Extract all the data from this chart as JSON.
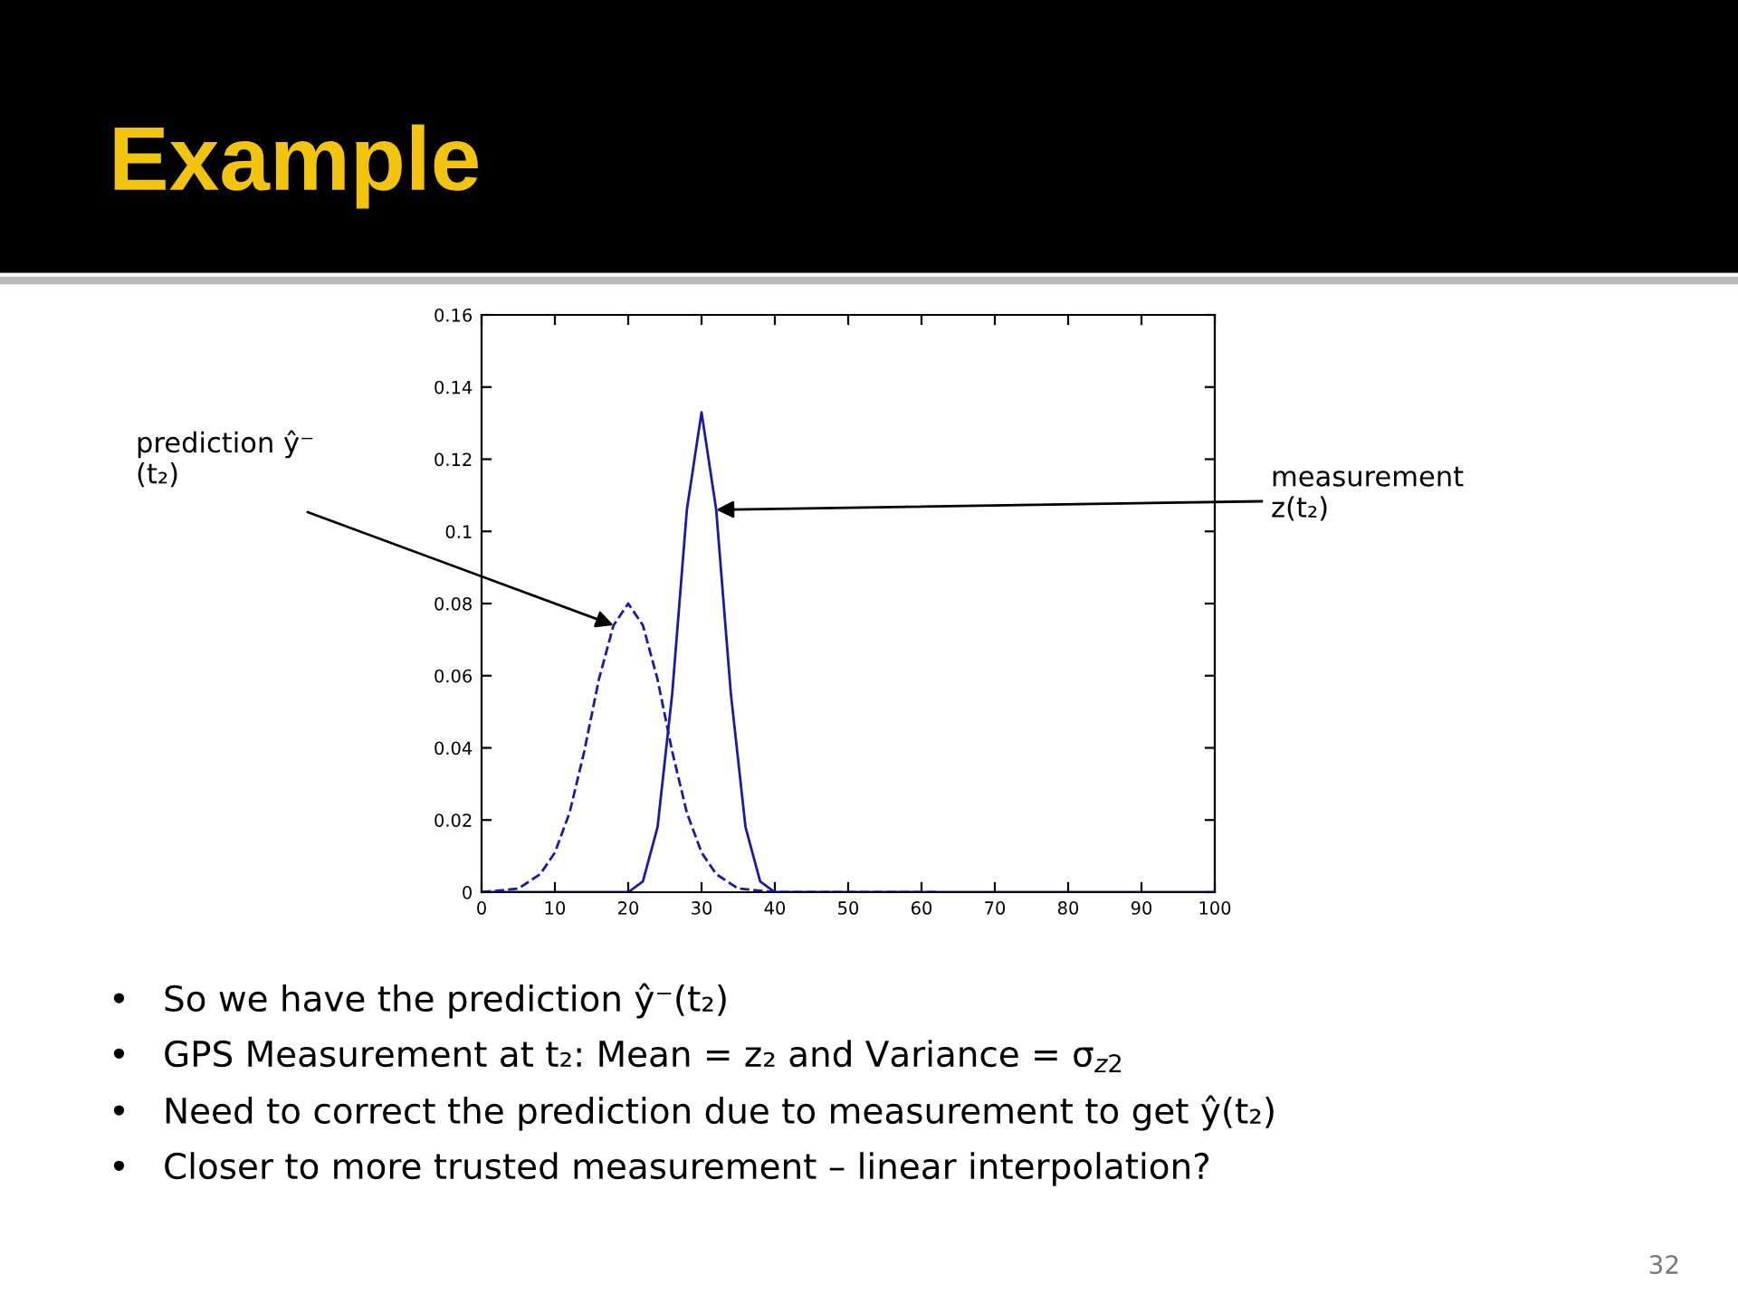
{
  "chart_data": {
    "type": "line",
    "title": "Example",
    "xlim": [
      0,
      100
    ],
    "xticks": [
      0,
      10,
      20,
      30,
      40,
      50,
      60,
      70,
      80,
      90,
      100
    ],
    "ylim": [
      0,
      0.16
    ],
    "yticks": [
      0,
      0.02,
      0.04,
      0.06,
      0.08,
      0.1,
      0.12,
      0.14,
      0.16
    ],
    "grid": false,
    "marker": "none",
    "series": [
      {
        "color": "#1a1aa8",
        "line_style": "dashed",
        "x": [
          0,
          5,
          8,
          10,
          12,
          14,
          16,
          18,
          20,
          22,
          24,
          26,
          28,
          30,
          32,
          35,
          40,
          62
        ],
        "values": [
          0,
          0.001,
          0.005,
          0.011,
          0.022,
          0.039,
          0.059,
          0.074,
          0.08,
          0.074,
          0.059,
          0.039,
          0.022,
          0.011,
          0.005,
          0.001,
          0,
          0
        ]
      },
      {
        "color": "#1a1aa8",
        "line_style": "solid",
        "x": [
          0,
          20,
          22,
          24,
          26,
          28,
          30,
          32,
          34,
          36,
          38,
          40,
          100
        ],
        "values": [
          0,
          0,
          0.003,
          0.018,
          0.055,
          0.106,
          0.133,
          0.106,
          0.055,
          0.018,
          0.003,
          0,
          0
        ]
      }
    ],
    "annotations": [
      {
        "text": "prediction ŷ⁻\n(t₂)",
        "x": 18,
        "y": 0.074
      },
      {
        "text": "measurement\nz(t₂)",
        "x": 32,
        "y": 0.106
      },
      "•   So we have the prediction ŷ⁻(t₂)",
      "•   GPS Measurement at t₂: Mean = z₂ and Variance = σ$_{z2}$",
      "•   Need to correct the prediction due to measurement to get ŷ(t₂)",
      "•   Closer to more trusted measurement – linear interpolation?",
      "32"
    ]
  }
}
